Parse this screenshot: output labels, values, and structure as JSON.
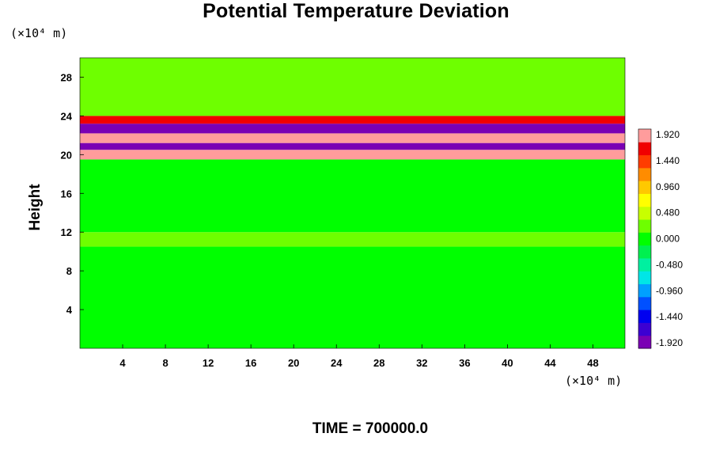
{
  "chart_data": {
    "type": "heatmap",
    "title": "Potential Temperature Deviation",
    "xlabel": "",
    "ylabel": "Height",
    "x_unit": "(×10⁴ m)",
    "y_unit": "(×10⁴ m)",
    "xlim": [
      0,
      51
    ],
    "ylim": [
      0,
      30
    ],
    "x_ticks": [
      4,
      8,
      12,
      16,
      20,
      24,
      28,
      32,
      36,
      40,
      44,
      48
    ],
    "y_ticks": [
      4,
      8,
      12,
      16,
      20,
      24,
      28
    ],
    "colorbar": {
      "range": [
        -1.92,
        1.92
      ],
      "labels": [
        "1.920",
        "1.440",
        "0.960",
        "0.480",
        "0.000",
        "-0.480",
        "-0.960",
        "-1.440",
        "-1.920"
      ]
    },
    "field_bands": [
      {
        "y_from": 0,
        "y_to": 10.5,
        "value": 0.0
      },
      {
        "y_from": 10.5,
        "y_to": 12,
        "value": 0.3
      },
      {
        "y_from": 12,
        "y_to": 19.5,
        "value": -0.1
      },
      {
        "y_from": 19.5,
        "y_to": 20.5,
        "value": 1.9
      },
      {
        "y_from": 20.5,
        "y_to": 21.2,
        "value": -1.9
      },
      {
        "y_from": 21.2,
        "y_to": 22.2,
        "value": 1.9
      },
      {
        "y_from": 22.2,
        "y_to": 23.2,
        "value": -1.9
      },
      {
        "y_from": 23.2,
        "y_to": 24,
        "value": 1.6
      },
      {
        "y_from": 24,
        "y_to": 30,
        "value": 0.2
      }
    ]
  },
  "footer": {
    "text": "TIME = 700000.0"
  },
  "colors": {
    "palette": [
      "#7a00b4",
      "#3c00d2",
      "#0000f0",
      "#0050ff",
      "#00a0ff",
      "#00e6e6",
      "#00f0a0",
      "#00f050",
      "#00ff00",
      "#6eff00",
      "#c8ff00",
      "#ffff00",
      "#ffc800",
      "#ff8c00",
      "#ff3c00",
      "#f00000",
      "#ff9c9c"
    ]
  }
}
